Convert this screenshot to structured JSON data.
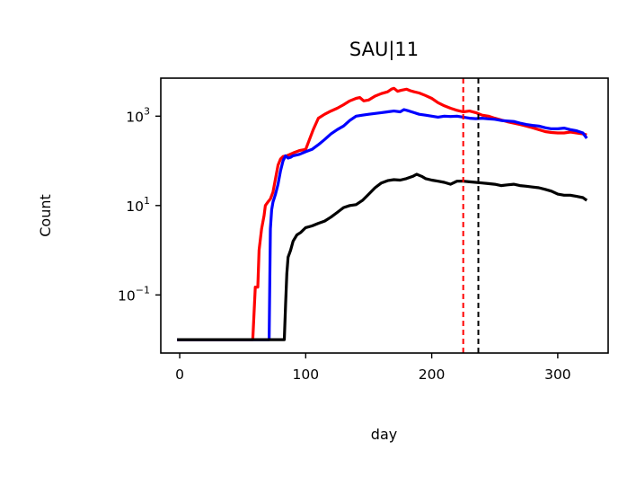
{
  "chart_data": {
    "type": "line",
    "title": "SAU|11",
    "xlabel": "day",
    "ylabel": "Count",
    "xlim": [
      -15,
      340
    ],
    "ylim_log10": [
      -2.3,
      3.85
    ],
    "yscale": "log",
    "x_ticks": [
      0,
      100,
      200,
      300
    ],
    "x_tick_labels": [
      "0",
      "100",
      "200",
      "300"
    ],
    "y_ticks": [
      {
        "value": 1000,
        "base": "10",
        "exp": "3"
      },
      {
        "value": 10,
        "base": "10",
        "exp": "1"
      },
      {
        "value": 0.1,
        "base": "10",
        "exp": "−1"
      }
    ],
    "grid": false,
    "legend": "none",
    "vlines": [
      {
        "x": 225,
        "color": "#ff0000",
        "style": "dashed"
      },
      {
        "x": 237,
        "color": "#000000",
        "style": "dashed"
      }
    ],
    "series": [
      {
        "color": "#ff0000",
        "points": [
          [
            -2,
            0.01
          ],
          [
            58,
            0.01
          ],
          [
            60,
            0.15
          ],
          [
            62,
            0.15
          ],
          [
            63,
            1
          ],
          [
            65,
            3
          ],
          [
            67,
            6
          ],
          [
            68,
            10
          ],
          [
            70,
            12
          ],
          [
            72,
            14
          ],
          [
            74,
            20
          ],
          [
            76,
            40
          ],
          [
            78,
            80
          ],
          [
            80,
            110
          ],
          [
            82,
            125
          ],
          [
            85,
            130
          ],
          [
            90,
            150
          ],
          [
            95,
            170
          ],
          [
            100,
            180
          ],
          [
            103,
            300
          ],
          [
            106,
            500
          ],
          [
            110,
            900
          ],
          [
            115,
            1100
          ],
          [
            120,
            1300
          ],
          [
            125,
            1500
          ],
          [
            130,
            1800
          ],
          [
            135,
            2200
          ],
          [
            140,
            2500
          ],
          [
            143,
            2600
          ],
          [
            146,
            2200
          ],
          [
            150,
            2300
          ],
          [
            155,
            2800
          ],
          [
            160,
            3200
          ],
          [
            165,
            3500
          ],
          [
            168,
            4000
          ],
          [
            170,
            4200
          ],
          [
            173,
            3600
          ],
          [
            176,
            3800
          ],
          [
            180,
            4000
          ],
          [
            183,
            3700
          ],
          [
            186,
            3500
          ],
          [
            190,
            3300
          ],
          [
            195,
            2900
          ],
          [
            200,
            2500
          ],
          [
            205,
            2000
          ],
          [
            210,
            1700
          ],
          [
            215,
            1500
          ],
          [
            220,
            1350
          ],
          [
            225,
            1250
          ],
          [
            230,
            1300
          ],
          [
            235,
            1200
          ],
          [
            240,
            1050
          ],
          [
            245,
            1000
          ],
          [
            250,
            900
          ],
          [
            255,
            820
          ],
          [
            260,
            750
          ],
          [
            265,
            700
          ],
          [
            270,
            650
          ],
          [
            275,
            600
          ],
          [
            280,
            550
          ],
          [
            285,
            500
          ],
          [
            290,
            450
          ],
          [
            295,
            430
          ],
          [
            300,
            420
          ],
          [
            305,
            420
          ],
          [
            310,
            440
          ],
          [
            315,
            420
          ],
          [
            320,
            400
          ],
          [
            323,
            380
          ]
        ]
      },
      {
        "color": "#0000ff",
        "points": [
          [
            -2,
            0.01
          ],
          [
            71,
            0.01
          ],
          [
            72,
            3
          ],
          [
            73,
            8
          ],
          [
            74,
            12
          ],
          [
            76,
            18
          ],
          [
            78,
            30
          ],
          [
            80,
            60
          ],
          [
            82,
            100
          ],
          [
            84,
            130
          ],
          [
            86,
            115
          ],
          [
            88,
            120
          ],
          [
            90,
            130
          ],
          [
            95,
            140
          ],
          [
            100,
            160
          ],
          [
            105,
            180
          ],
          [
            110,
            230
          ],
          [
            115,
            300
          ],
          [
            120,
            400
          ],
          [
            125,
            500
          ],
          [
            130,
            600
          ],
          [
            135,
            800
          ],
          [
            140,
            1000
          ],
          [
            145,
            1050
          ],
          [
            150,
            1100
          ],
          [
            155,
            1150
          ],
          [
            160,
            1200
          ],
          [
            165,
            1250
          ],
          [
            170,
            1300
          ],
          [
            175,
            1250
          ],
          [
            178,
            1400
          ],
          [
            182,
            1300
          ],
          [
            186,
            1200
          ],
          [
            190,
            1100
          ],
          [
            195,
            1050
          ],
          [
            200,
            1000
          ],
          [
            205,
            950
          ],
          [
            210,
            1000
          ],
          [
            215,
            980
          ],
          [
            220,
            1000
          ],
          [
            225,
            950
          ],
          [
            230,
            900
          ],
          [
            235,
            880
          ],
          [
            240,
            900
          ],
          [
            245,
            870
          ],
          [
            250,
            850
          ],
          [
            255,
            800
          ],
          [
            260,
            780
          ],
          [
            265,
            760
          ],
          [
            270,
            700
          ],
          [
            275,
            650
          ],
          [
            280,
            620
          ],
          [
            285,
            600
          ],
          [
            290,
            550
          ],
          [
            295,
            520
          ],
          [
            300,
            520
          ],
          [
            305,
            540
          ],
          [
            310,
            500
          ],
          [
            315,
            470
          ],
          [
            320,
            420
          ],
          [
            323,
            320
          ]
        ]
      },
      {
        "color": "#000000",
        "points": [
          [
            -2,
            0.01
          ],
          [
            83,
            0.01
          ],
          [
            84,
            0.06
          ],
          [
            85,
            0.3
          ],
          [
            86,
            0.7
          ],
          [
            88,
            1
          ],
          [
            90,
            1.6
          ],
          [
            93,
            2.2
          ],
          [
            96,
            2.5
          ],
          [
            100,
            3.2
          ],
          [
            105,
            3.5
          ],
          [
            110,
            4
          ],
          [
            115,
            4.5
          ],
          [
            120,
            5.5
          ],
          [
            125,
            7
          ],
          [
            130,
            9
          ],
          [
            135,
            10
          ],
          [
            140,
            10.5
          ],
          [
            145,
            13
          ],
          [
            150,
            18
          ],
          [
            155,
            25
          ],
          [
            160,
            32
          ],
          [
            165,
            36
          ],
          [
            170,
            38
          ],
          [
            175,
            37
          ],
          [
            180,
            40
          ],
          [
            185,
            45
          ],
          [
            188,
            50
          ],
          [
            192,
            45
          ],
          [
            195,
            40
          ],
          [
            200,
            37
          ],
          [
            205,
            35
          ],
          [
            210,
            33
          ],
          [
            215,
            30
          ],
          [
            220,
            35
          ],
          [
            225,
            35
          ],
          [
            230,
            34
          ],
          [
            235,
            33
          ],
          [
            240,
            32
          ],
          [
            245,
            31
          ],
          [
            250,
            30
          ],
          [
            255,
            28
          ],
          [
            260,
            29
          ],
          [
            265,
            30
          ],
          [
            270,
            28
          ],
          [
            275,
            27
          ],
          [
            280,
            26
          ],
          [
            285,
            25
          ],
          [
            290,
            23
          ],
          [
            295,
            21
          ],
          [
            300,
            18
          ],
          [
            305,
            17
          ],
          [
            310,
            17
          ],
          [
            315,
            16
          ],
          [
            320,
            15
          ],
          [
            323,
            13
          ]
        ]
      }
    ]
  }
}
